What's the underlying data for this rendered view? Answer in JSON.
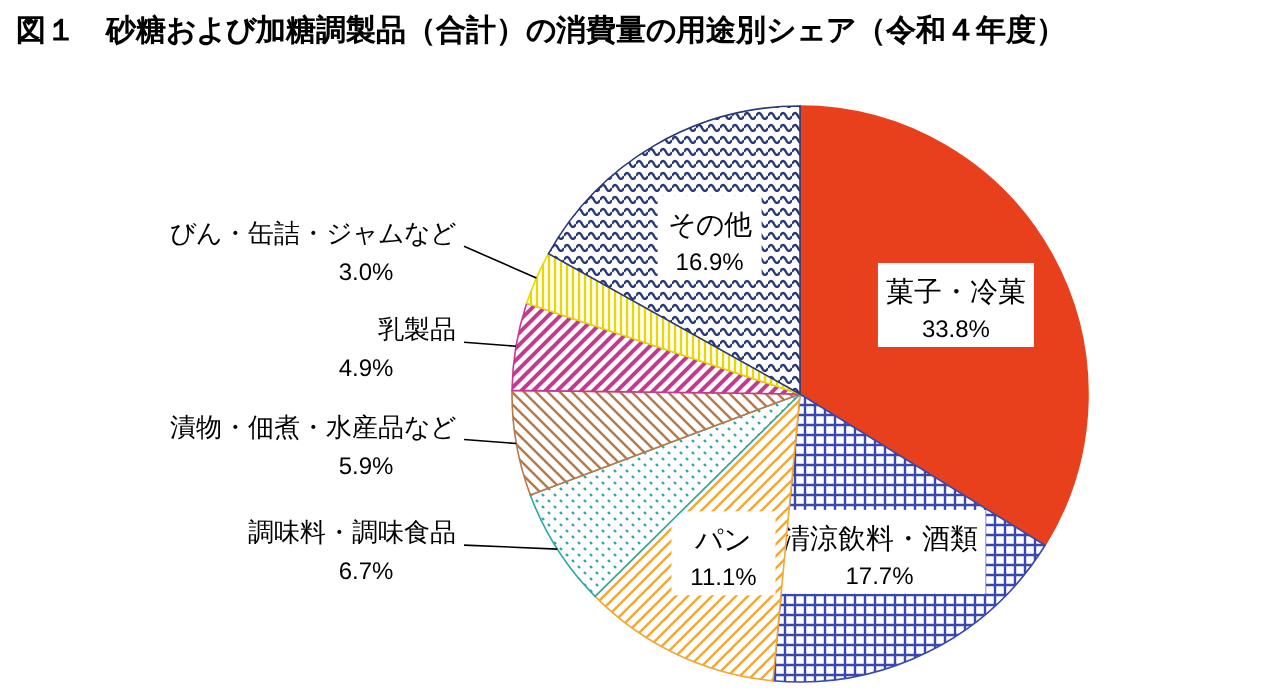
{
  "chart_data": {
    "type": "pie",
    "title": "図１　砂糖および加糖調製品（合計）の消費量の用途別シェア（令和４年度）",
    "categories": [
      "菓子・冷菓",
      "清涼飲料・酒類",
      "パン",
      "調味料・調味食品",
      "漬物・佃煮・水産品など",
      "乳製品",
      "びん・缶詰・ジャムなど",
      "その他"
    ],
    "values": [
      33.8,
      17.7,
      11.1,
      6.7,
      5.9,
      4.9,
      3.0,
      16.9
    ],
    "value_labels": [
      "33.8%",
      "17.7%",
      "11.1%",
      "6.7%",
      "5.9%",
      "4.9%",
      "3.0%",
      "16.9%"
    ],
    "colors": [
      "#e8401c",
      "#3848b0",
      "#f0a838",
      "#28a8a8",
      "#b87848",
      "#c83890",
      "#e8d800",
      "#283878"
    ]
  }
}
